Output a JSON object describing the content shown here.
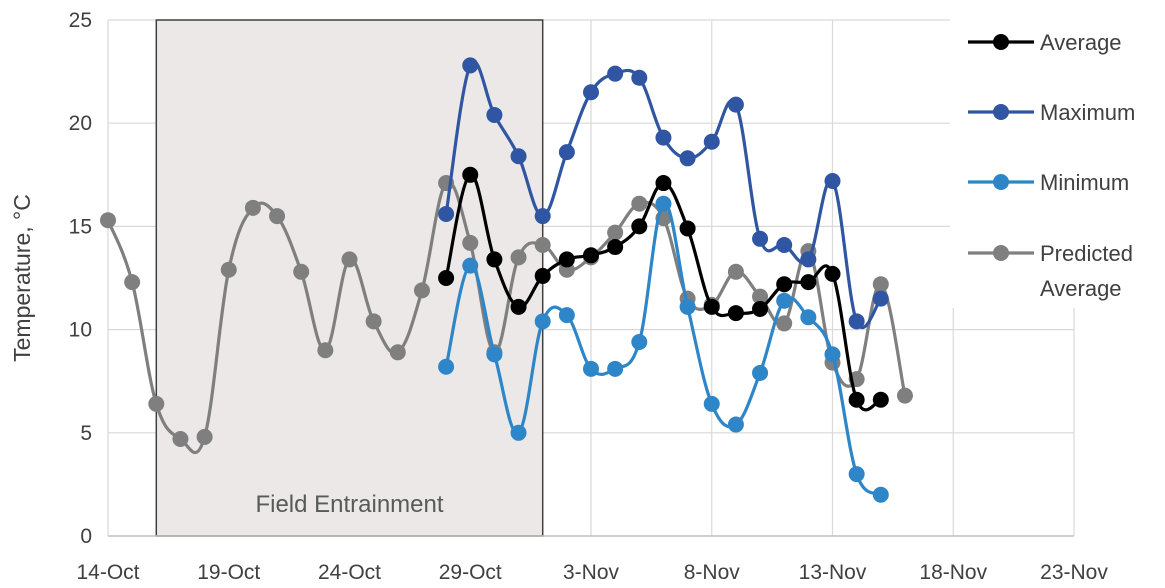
{
  "chart_data": {
    "type": "line",
    "xlabel": "",
    "ylabel": "Temperature, °C",
    "ylim": [
      0,
      25
    ],
    "yticks": [
      0,
      5,
      10,
      15,
      20,
      25
    ],
    "x_type": "date",
    "xticks": [
      "2020-10-14",
      "2020-10-19",
      "2020-10-24",
      "2020-10-29",
      "2020-11-03",
      "2020-11-08",
      "2020-11-13",
      "2020-11-18",
      "2020-11-23"
    ],
    "xtick_labels": [
      "14-Oct",
      "19-Oct",
      "24-Oct",
      "29-Oct",
      "3-Nov",
      "8-Nov",
      "13-Nov",
      "18-Nov",
      "23-Nov"
    ],
    "xlim": [
      "2020-10-14",
      "2020-11-23"
    ],
    "grid": true,
    "legend_position": "right",
    "annotation": {
      "text": "Field Entrainment",
      "x_start": "2020-10-16",
      "x_end": "2020-11-01",
      "fill": "#ece8e8"
    },
    "series": [
      {
        "name": "Average",
        "color": "#000000",
        "points": [
          [
            "2020-10-28",
            12.5
          ],
          [
            "2020-10-29",
            17.5
          ],
          [
            "2020-10-30",
            13.4
          ],
          [
            "2020-10-31",
            11.1
          ],
          [
            "2020-11-01",
            12.6
          ],
          [
            "2020-11-02",
            13.4
          ],
          [
            "2020-11-03",
            13.6
          ],
          [
            "2020-11-04",
            14.0
          ],
          [
            "2020-11-05",
            15.0
          ],
          [
            "2020-11-06",
            17.1
          ],
          [
            "2020-11-07",
            14.9
          ],
          [
            "2020-11-08",
            11.1
          ],
          [
            "2020-11-09",
            10.8
          ],
          [
            "2020-11-10",
            11.0
          ],
          [
            "2020-11-11",
            12.2
          ],
          [
            "2020-11-12",
            12.3
          ],
          [
            "2020-11-13",
            12.7
          ],
          [
            "2020-11-14",
            6.6
          ],
          [
            "2020-11-15",
            6.6
          ]
        ]
      },
      {
        "name": "Maximum",
        "color": "#2f55a3",
        "points": [
          [
            "2020-10-28",
            15.6
          ],
          [
            "2020-10-29",
            22.8
          ],
          [
            "2020-10-30",
            20.4
          ],
          [
            "2020-10-31",
            18.4
          ],
          [
            "2020-11-01",
            15.5
          ],
          [
            "2020-11-02",
            18.6
          ],
          [
            "2020-11-03",
            21.5
          ],
          [
            "2020-11-04",
            22.4
          ],
          [
            "2020-11-05",
            22.2
          ],
          [
            "2020-11-06",
            19.3
          ],
          [
            "2020-11-07",
            18.3
          ],
          [
            "2020-11-08",
            19.1
          ],
          [
            "2020-11-09",
            20.9
          ],
          [
            "2020-11-10",
            14.4
          ],
          [
            "2020-11-11",
            14.1
          ],
          [
            "2020-11-12",
            13.4
          ],
          [
            "2020-11-13",
            17.2
          ],
          [
            "2020-11-14",
            10.4
          ],
          [
            "2020-11-15",
            11.5
          ]
        ]
      },
      {
        "name": "Minimum",
        "color": "#2e86c8",
        "points": [
          [
            "2020-10-28",
            8.2
          ],
          [
            "2020-10-29",
            13.1
          ],
          [
            "2020-10-30",
            8.8
          ],
          [
            "2020-10-31",
            5.0
          ],
          [
            "2020-11-01",
            10.4
          ],
          [
            "2020-11-02",
            10.7
          ],
          [
            "2020-11-03",
            8.1
          ],
          [
            "2020-11-04",
            8.1
          ],
          [
            "2020-11-05",
            9.4
          ],
          [
            "2020-11-06",
            16.1
          ],
          [
            "2020-11-07",
            11.1
          ],
          [
            "2020-11-08",
            6.4
          ],
          [
            "2020-11-09",
            5.4
          ],
          [
            "2020-11-10",
            7.9
          ],
          [
            "2020-11-11",
            11.4
          ],
          [
            "2020-11-12",
            10.6
          ],
          [
            "2020-11-13",
            8.8
          ],
          [
            "2020-11-14",
            3.0
          ],
          [
            "2020-11-15",
            2.0
          ]
        ]
      },
      {
        "name": "Predicted Average",
        "color": "#7f7f7f",
        "points": [
          [
            "2020-10-14",
            15.3
          ],
          [
            "2020-10-15",
            12.3
          ],
          [
            "2020-10-16",
            6.4
          ],
          [
            "2020-10-17",
            4.7
          ],
          [
            "2020-10-18",
            4.8
          ],
          [
            "2020-10-19",
            12.9
          ],
          [
            "2020-10-20",
            15.9
          ],
          [
            "2020-10-21",
            15.5
          ],
          [
            "2020-10-22",
            12.8
          ],
          [
            "2020-10-23",
            9.0
          ],
          [
            "2020-10-24",
            13.4
          ],
          [
            "2020-10-25",
            10.4
          ],
          [
            "2020-10-26",
            8.9
          ],
          [
            "2020-10-27",
            11.9
          ],
          [
            "2020-10-28",
            17.1
          ],
          [
            "2020-10-29",
            14.2
          ],
          [
            "2020-10-30",
            8.9
          ],
          [
            "2020-10-31",
            13.5
          ],
          [
            "2020-11-01",
            14.1
          ],
          [
            "2020-11-02",
            12.9
          ],
          [
            "2020-11-03",
            13.5
          ],
          [
            "2020-11-04",
            14.7
          ],
          [
            "2020-11-05",
            16.1
          ],
          [
            "2020-11-06",
            15.4
          ],
          [
            "2020-11-07",
            11.5
          ],
          [
            "2020-11-08",
            11.2
          ],
          [
            "2020-11-09",
            12.8
          ],
          [
            "2020-11-10",
            11.6
          ],
          [
            "2020-11-11",
            10.3
          ],
          [
            "2020-11-12",
            13.8
          ],
          [
            "2020-11-13",
            8.4
          ],
          [
            "2020-11-14",
            7.6
          ],
          [
            "2020-11-15",
            12.2
          ],
          [
            "2020-11-16",
            6.8
          ]
        ]
      }
    ],
    "legend_labels": [
      {
        "series": "Average",
        "lines": [
          "Average"
        ]
      },
      {
        "series": "Maximum",
        "lines": [
          "Maximum"
        ]
      },
      {
        "series": "Minimum",
        "lines": [
          "Minimum"
        ]
      },
      {
        "series": "Predicted Average",
        "lines": [
          "Predicted",
          "Average"
        ]
      }
    ]
  }
}
